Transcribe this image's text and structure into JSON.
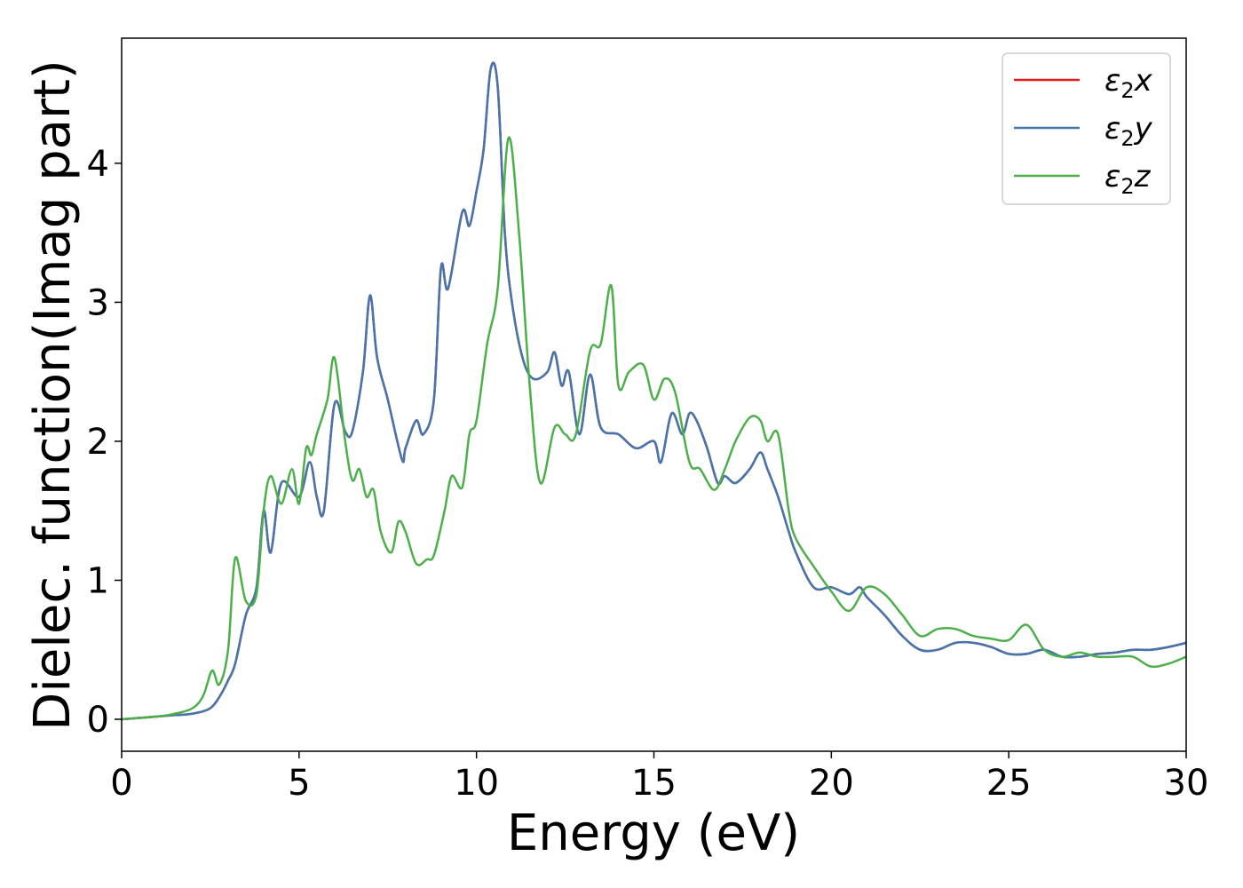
{
  "chart_data": {
    "type": "line",
    "title": "",
    "xlabel": "Energy (eV)",
    "ylabel": "Dielec. function(Imag part)",
    "xlim": [
      0,
      30
    ],
    "ylim": [
      -0.23,
      4.9
    ],
    "xticks": [
      0,
      5,
      10,
      15,
      20,
      25,
      30
    ],
    "yticks": [
      0,
      1,
      2,
      3,
      4
    ],
    "xtick_labels": [
      "0",
      "5",
      "10",
      "15",
      "20",
      "25",
      "30"
    ],
    "ytick_labels": [
      "0",
      "1",
      "2",
      "3",
      "4"
    ],
    "grid": false,
    "legend_position": "top-right",
    "series": [
      {
        "name": "ε₂x",
        "legend_label": {
          "base": "ε",
          "sub": "2",
          "var": "x"
        },
        "color": "#e41a1c",
        "x": [
          0,
          1,
          1.5,
          2,
          2.5,
          2.8,
          3.0,
          3.2,
          3.5,
          3.8,
          4.0,
          4.2,
          4.5,
          5.0,
          5.3,
          5.5,
          5.7,
          6.0,
          6.3,
          6.5,
          6.8,
          7.0,
          7.2,
          7.5,
          7.9,
          8.0,
          8.3,
          8.5,
          8.8,
          9.0,
          9.2,
          9.6,
          9.8,
          10.0,
          10.2,
          10.4,
          10.6,
          10.8,
          11.0,
          11.3,
          11.6,
          12.0,
          12.2,
          12.4,
          12.6,
          12.9,
          13.2,
          13.5,
          14.0,
          14.5,
          15.0,
          15.2,
          15.5,
          15.8,
          16.0,
          16.2,
          16.5,
          16.8,
          17.0,
          17.3,
          17.7,
          18.0,
          18.2,
          18.5,
          18.8,
          19.0,
          19.5,
          20.0,
          20.5,
          20.8,
          21.0,
          21.5,
          22.0,
          22.5,
          23.0,
          23.5,
          24.0,
          24.5,
          25.0,
          25.5,
          26.0,
          26.5,
          27.0,
          27.5,
          28.0,
          28.5,
          29.0,
          29.5,
          30.0
        ],
        "y": [
          0,
          0.02,
          0.03,
          0.04,
          0.08,
          0.18,
          0.28,
          0.4,
          0.75,
          0.95,
          1.5,
          1.2,
          1.7,
          1.6,
          1.85,
          1.6,
          1.5,
          2.27,
          2.07,
          2.07,
          2.5,
          3.05,
          2.6,
          2.3,
          1.87,
          1.95,
          2.15,
          2.05,
          2.3,
          3.25,
          3.1,
          3.65,
          3.55,
          3.8,
          4.1,
          4.68,
          4.55,
          3.5,
          3.0,
          2.6,
          2.45,
          2.5,
          2.64,
          2.4,
          2.5,
          2.05,
          2.48,
          2.1,
          2.05,
          1.95,
          2.0,
          1.85,
          2.2,
          2.05,
          2.2,
          2.15,
          1.95,
          1.7,
          1.75,
          1.7,
          1.8,
          1.92,
          1.8,
          1.6,
          1.35,
          1.2,
          0.95,
          0.95,
          0.9,
          0.95,
          0.88,
          0.75,
          0.6,
          0.5,
          0.5,
          0.55,
          0.55,
          0.52,
          0.47,
          0.47,
          0.5,
          0.45,
          0.45,
          0.47,
          0.48,
          0.5,
          0.5,
          0.52,
          0.55
        ]
      },
      {
        "name": "ε₂y",
        "legend_label": {
          "base": "ε",
          "sub": "2",
          "var": "y"
        },
        "color": "#4376ad",
        "x": [
          0,
          1,
          1.5,
          2,
          2.5,
          2.8,
          3.0,
          3.2,
          3.5,
          3.8,
          4.0,
          4.2,
          4.5,
          5.0,
          5.3,
          5.5,
          5.7,
          6.0,
          6.3,
          6.5,
          6.8,
          7.0,
          7.2,
          7.5,
          7.9,
          8.0,
          8.3,
          8.5,
          8.8,
          9.0,
          9.2,
          9.6,
          9.8,
          10.0,
          10.2,
          10.4,
          10.6,
          10.8,
          11.0,
          11.3,
          11.6,
          12.0,
          12.2,
          12.4,
          12.6,
          12.9,
          13.2,
          13.5,
          14.0,
          14.5,
          15.0,
          15.2,
          15.5,
          15.8,
          16.0,
          16.2,
          16.5,
          16.8,
          17.0,
          17.3,
          17.7,
          18.0,
          18.2,
          18.5,
          18.8,
          19.0,
          19.5,
          20.0,
          20.5,
          20.8,
          21.0,
          21.5,
          22.0,
          22.5,
          23.0,
          23.5,
          24.0,
          24.5,
          25.0,
          25.5,
          26.0,
          26.5,
          27.0,
          27.5,
          28.0,
          28.5,
          29.0,
          29.5,
          30.0
        ],
        "y": [
          0,
          0.02,
          0.03,
          0.04,
          0.08,
          0.18,
          0.28,
          0.4,
          0.75,
          0.95,
          1.5,
          1.2,
          1.7,
          1.6,
          1.85,
          1.6,
          1.5,
          2.27,
          2.07,
          2.07,
          2.5,
          3.05,
          2.6,
          2.3,
          1.87,
          1.95,
          2.15,
          2.05,
          2.3,
          3.25,
          3.1,
          3.65,
          3.55,
          3.8,
          4.1,
          4.68,
          4.55,
          3.5,
          3.0,
          2.6,
          2.45,
          2.5,
          2.64,
          2.4,
          2.5,
          2.05,
          2.48,
          2.1,
          2.05,
          1.95,
          2.0,
          1.85,
          2.2,
          2.05,
          2.2,
          2.15,
          1.95,
          1.7,
          1.75,
          1.7,
          1.8,
          1.92,
          1.8,
          1.6,
          1.35,
          1.2,
          0.95,
          0.95,
          0.9,
          0.95,
          0.88,
          0.75,
          0.6,
          0.5,
          0.5,
          0.55,
          0.55,
          0.52,
          0.47,
          0.47,
          0.5,
          0.45,
          0.45,
          0.47,
          0.48,
          0.5,
          0.5,
          0.52,
          0.55
        ]
      },
      {
        "name": "ε₂z",
        "legend_label": {
          "base": "ε",
          "sub": "2",
          "var": "z"
        },
        "color": "#4daf4a",
        "x": [
          0,
          1,
          1.5,
          2,
          2.3,
          2.55,
          2.75,
          3.0,
          3.2,
          3.5,
          3.8,
          4.0,
          4.2,
          4.5,
          4.8,
          5.0,
          5.2,
          5.35,
          5.5,
          5.8,
          6.0,
          6.3,
          6.5,
          6.7,
          6.9,
          7.1,
          7.3,
          7.6,
          7.8,
          8.0,
          8.3,
          8.6,
          8.8,
          9.1,
          9.3,
          9.6,
          9.8,
          10.0,
          10.3,
          10.6,
          10.9,
          11.2,
          11.5,
          11.8,
          12.2,
          12.5,
          12.8,
          13.2,
          13.5,
          13.8,
          14.0,
          14.3,
          14.7,
          15.0,
          15.3,
          15.6,
          16.0,
          16.3,
          16.7,
          17.0,
          17.3,
          17.7,
          18.0,
          18.2,
          18.5,
          18.8,
          19.0,
          19.5,
          20.0,
          20.5,
          21.0,
          21.5,
          22.0,
          22.5,
          23.0,
          23.5,
          24.0,
          24.5,
          25.0,
          25.5,
          26.0,
          26.5,
          27.0,
          27.5,
          28.0,
          28.5,
          29.0,
          29.5,
          30.0
        ],
        "y": [
          0,
          0.02,
          0.04,
          0.08,
          0.17,
          0.35,
          0.25,
          0.5,
          1.16,
          0.85,
          0.9,
          1.5,
          1.75,
          1.55,
          1.8,
          1.55,
          1.95,
          1.9,
          2.05,
          2.3,
          2.6,
          2.0,
          1.72,
          1.8,
          1.6,
          1.65,
          1.35,
          1.2,
          1.42,
          1.35,
          1.12,
          1.15,
          1.18,
          1.5,
          1.75,
          1.67,
          2.05,
          2.15,
          2.7,
          3.1,
          4.18,
          3.5,
          2.4,
          1.7,
          2.1,
          2.05,
          2.05,
          2.65,
          2.7,
          3.12,
          2.4,
          2.5,
          2.55,
          2.3,
          2.45,
          2.35,
          1.85,
          1.8,
          1.65,
          1.8,
          2.0,
          2.17,
          2.15,
          2.0,
          2.05,
          1.5,
          1.3,
          1.1,
          0.92,
          0.78,
          0.95,
          0.9,
          0.75,
          0.6,
          0.65,
          0.65,
          0.6,
          0.58,
          0.57,
          0.68,
          0.5,
          0.45,
          0.48,
          0.45,
          0.45,
          0.45,
          0.38,
          0.4,
          0.45
        ]
      }
    ]
  }
}
